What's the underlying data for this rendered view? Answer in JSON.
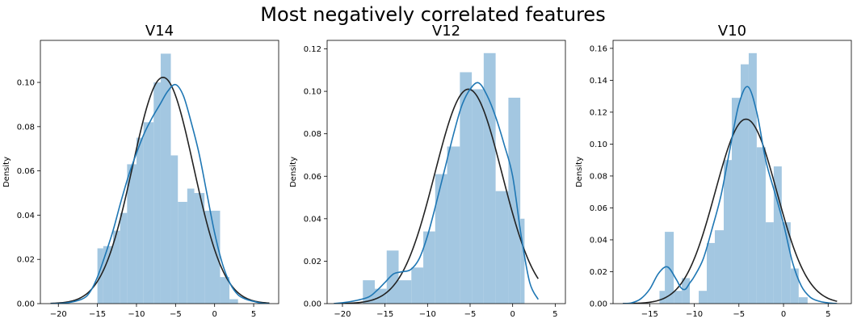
{
  "figure": {
    "title": "Most negatively correlated features"
  },
  "chart_data": [
    {
      "type": "histogram",
      "title": "V14",
      "xlabel": "",
      "ylabel": "Density",
      "xlim": [
        -22.3,
        8.2
      ],
      "ylim": [
        0,
        0.119
      ],
      "xticks": [
        -20,
        -15,
        -10,
        -5,
        0,
        5
      ],
      "yticks": [
        0,
        0.02,
        0.04,
        0.06,
        0.08,
        0.1
      ],
      "ytick_labels": [
        "0.00",
        "0.02",
        "0.04",
        "0.06",
        "0.08",
        "0.10"
      ],
      "bins": [
        {
          "x0": -16.25,
          "x1": -15.0,
          "density": 0.0
        },
        {
          "x0": -15.0,
          "x1": -14.25,
          "density": 0.025
        },
        {
          "x0": -14.25,
          "x1": -13.0,
          "density": 0.026
        },
        {
          "x0": -13.0,
          "x1": -12.1,
          "density": 0.033
        },
        {
          "x0": -12.1,
          "x1": -11.2,
          "density": 0.041
        },
        {
          "x0": -11.2,
          "x1": -10.0,
          "density": 0.063
        },
        {
          "x0": -10.0,
          "x1": -9.1,
          "density": 0.075
        },
        {
          "x0": -9.1,
          "x1": -7.8,
          "density": 0.082
        },
        {
          "x0": -7.8,
          "x1": -6.9,
          "density": 0.1
        },
        {
          "x0": -6.9,
          "x1": -5.6,
          "density": 0.113
        },
        {
          "x0": -5.6,
          "x1": -4.7,
          "density": 0.067
        },
        {
          "x0": -4.7,
          "x1": -3.5,
          "density": 0.046
        },
        {
          "x0": -3.5,
          "x1": -2.6,
          "density": 0.052
        },
        {
          "x0": -2.6,
          "x1": -1.3,
          "density": 0.05
        },
        {
          "x0": -1.3,
          "x1": 0.7,
          "density": 0.042
        },
        {
          "x0": 0.7,
          "x1": 1.9,
          "density": 0.012
        },
        {
          "x0": 1.9,
          "x1": 3.0,
          "density": 0.002
        }
      ],
      "kde": {
        "x": [
          -21,
          -19,
          -17,
          -16,
          -15,
          -14,
          -13,
          -12,
          -11,
          -10,
          -9,
          -8,
          -7,
          -6,
          -5,
          -4,
          -3,
          -2,
          -1,
          0,
          1,
          2,
          3,
          4,
          5,
          6,
          7
        ],
        "y": [
          0.0,
          0.0003,
          0.002,
          0.005,
          0.012,
          0.022,
          0.033,
          0.046,
          0.058,
          0.068,
          0.077,
          0.084,
          0.09,
          0.096,
          0.099,
          0.094,
          0.082,
          0.068,
          0.05,
          0.032,
          0.018,
          0.009,
          0.004,
          0.002,
          0.001,
          0.0002,
          0.0
        ]
      },
      "norm_fit": {
        "mu": -6.6,
        "sigma": 3.9
      }
    },
    {
      "type": "histogram",
      "title": "V12",
      "xlabel": "",
      "ylabel": "Density",
      "xlim": [
        -21.8,
        6.2
      ],
      "ylim": [
        0,
        0.124
      ],
      "xticks": [
        -20,
        -15,
        -10,
        -5,
        0,
        5
      ],
      "yticks": [
        0,
        0.02,
        0.04,
        0.06,
        0.08,
        0.1,
        0.12
      ],
      "ytick_labels": [
        "0.00",
        "0.02",
        "0.04",
        "0.06",
        "0.08",
        "0.10",
        "0.12"
      ],
      "bins": [
        {
          "x0": -17.6,
          "x1": -16.2,
          "density": 0.011
        },
        {
          "x0": -16.2,
          "x1": -14.8,
          "density": 0.007
        },
        {
          "x0": -14.8,
          "x1": -13.4,
          "density": 0.025
        },
        {
          "x0": -13.4,
          "x1": -11.9,
          "density": 0.011
        },
        {
          "x0": -11.9,
          "x1": -10.5,
          "density": 0.017
        },
        {
          "x0": -10.5,
          "x1": -9.1,
          "density": 0.034
        },
        {
          "x0": -9.1,
          "x1": -7.7,
          "density": 0.061
        },
        {
          "x0": -7.7,
          "x1": -6.2,
          "density": 0.074
        },
        {
          "x0": -6.2,
          "x1": -4.8,
          "density": 0.109
        },
        {
          "x0": -4.8,
          "x1": -3.4,
          "density": 0.101
        },
        {
          "x0": -3.4,
          "x1": -2.0,
          "density": 0.118
        },
        {
          "x0": -2.0,
          "x1": -0.5,
          "density": 0.053
        },
        {
          "x0": -0.5,
          "x1": 0.9,
          "density": 0.097
        },
        {
          "x0": 0.9,
          "x1": 1.4,
          "density": 0.04
        }
      ],
      "kde": {
        "x": [
          -21,
          -19,
          -17,
          -16,
          -15,
          -14,
          -13,
          -12,
          -11,
          -10,
          -9,
          -8,
          -7,
          -6,
          -5,
          -4,
          -3,
          -2,
          -1,
          0,
          1,
          2,
          3
        ],
        "y": [
          0.0,
          0.001,
          0.003,
          0.006,
          0.01,
          0.014,
          0.015,
          0.016,
          0.021,
          0.032,
          0.047,
          0.063,
          0.079,
          0.093,
          0.101,
          0.104,
          0.098,
          0.088,
          0.075,
          0.06,
          0.032,
          0.01,
          0.002
        ]
      },
      "norm_fit": {
        "mu": -5.2,
        "sigma": 3.95
      }
    },
    {
      "type": "histogram",
      "title": "V10",
      "xlabel": "",
      "ylabel": "Density",
      "xlim": [
        -19.1,
        7.6
      ],
      "ylim": [
        0,
        0.165
      ],
      "xticks": [
        -15,
        -10,
        -5,
        0,
        5
      ],
      "yticks": [
        0,
        0.02,
        0.04,
        0.06,
        0.08,
        0.1,
        0.12,
        0.14,
        0.16
      ],
      "ytick_labels": [
        "0.00",
        "0.02",
        "0.04",
        "0.06",
        "0.08",
        "0.10",
        "0.12",
        "0.14",
        "0.16"
      ],
      "bins": [
        {
          "x0": -13.9,
          "x1": -13.3,
          "density": 0.008
        },
        {
          "x0": -13.3,
          "x1": -12.3,
          "density": 0.045
        },
        {
          "x0": -12.3,
          "x1": -11.4,
          "density": 0.008
        },
        {
          "x0": -11.4,
          "x1": -10.5,
          "density": 0.016
        },
        {
          "x0": -10.5,
          "x1": -9.5,
          "density": 0.0
        },
        {
          "x0": -9.5,
          "x1": -8.6,
          "density": 0.008
        },
        {
          "x0": -8.6,
          "x1": -7.7,
          "density": 0.038
        },
        {
          "x0": -7.7,
          "x1": -6.7,
          "density": 0.046
        },
        {
          "x0": -6.7,
          "x1": -5.8,
          "density": 0.09
        },
        {
          "x0": -5.8,
          "x1": -4.8,
          "density": 0.129
        },
        {
          "x0": -4.8,
          "x1": -3.9,
          "density": 0.15
        },
        {
          "x0": -3.9,
          "x1": -3.0,
          "density": 0.157
        },
        {
          "x0": -3.0,
          "x1": -2.0,
          "density": 0.098
        },
        {
          "x0": -2.0,
          "x1": -1.1,
          "density": 0.051
        },
        {
          "x0": -1.1,
          "x1": -0.2,
          "density": 0.086
        },
        {
          "x0": -0.2,
          "x1": 0.8,
          "density": 0.051
        },
        {
          "x0": 0.8,
          "x1": 1.7,
          "density": 0.022
        },
        {
          "x0": 1.7,
          "x1": 2.7,
          "density": 0.004
        }
      ],
      "kde": {
        "x": [
          -18,
          -17,
          -16,
          -15,
          -14,
          -13,
          -12,
          -11.5,
          -11,
          -10.5,
          -10,
          -9,
          -8,
          -7,
          -6,
          -5,
          -4,
          -3,
          -2,
          -1,
          0,
          1,
          2,
          3,
          4,
          5,
          6
        ],
        "y": [
          0.0,
          0.0005,
          0.003,
          0.009,
          0.019,
          0.023,
          0.015,
          0.01,
          0.009,
          0.013,
          0.017,
          0.028,
          0.047,
          0.068,
          0.097,
          0.125,
          0.136,
          0.12,
          0.09,
          0.07,
          0.05,
          0.026,
          0.011,
          0.004,
          0.0015,
          0.0005,
          0.0
        ]
      },
      "norm_fit": {
        "mu": -4.2,
        "sigma": 3.45
      }
    }
  ],
  "colors": {
    "hist": "#a3c7e1",
    "kde": "#1f77b4",
    "fit": "#222222",
    "axis": "#000000"
  }
}
